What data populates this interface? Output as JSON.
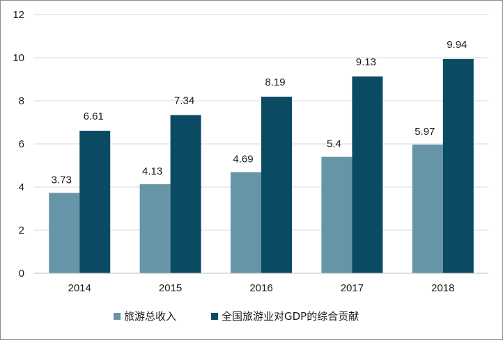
{
  "chart_data": {
    "type": "bar",
    "title": "",
    "xlabel": "",
    "ylabel": "",
    "categories": [
      "2014",
      "2015",
      "2016",
      "2017",
      "2018"
    ],
    "ylim": [
      0,
      12
    ],
    "yticks": [
      0,
      2,
      4,
      6,
      8,
      10,
      12
    ],
    "grid": true,
    "legend_position": "bottom",
    "series": [
      {
        "name": "旅游总收入",
        "color": "#6795a8",
        "values": [
          3.73,
          4.13,
          4.69,
          5.4,
          5.97
        ],
        "labels": [
          "3.73",
          "4.13",
          "4.69",
          "5.4",
          "5.97"
        ]
      },
      {
        "name": "全国旅游业对GDP的综合贡献",
        "color": "#0b4a63",
        "values": [
          6.61,
          7.34,
          8.19,
          9.13,
          9.94
        ],
        "labels": [
          "6.61",
          "7.34",
          "8.19",
          "9.13",
          "9.94"
        ]
      }
    ]
  }
}
